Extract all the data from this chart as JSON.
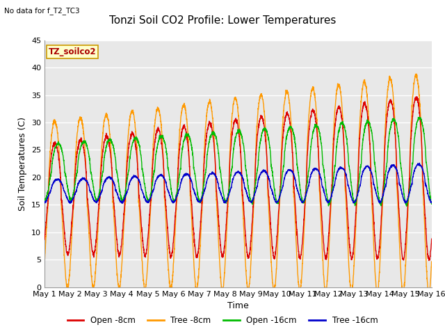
{
  "title": "Tonzi Soil CO2 Profile: Lower Temperatures",
  "subtitle": "No data for f_T2_TC3",
  "xlabel": "Time",
  "ylabel": "Soil Temperatures (C)",
  "legend_label": "TZ_soilco2",
  "series_labels": [
    "Open -8cm",
    "Tree -8cm",
    "Open -16cm",
    "Tree -16cm"
  ],
  "series_colors": [
    "#dd0000",
    "#ff9900",
    "#00bb00",
    "#0000cc"
  ],
  "ylim": [
    0,
    45
  ],
  "xlim": [
    0,
    15
  ],
  "xtick_labels": [
    "May 1",
    "May 2",
    "May 3",
    "May 4",
    "May 5",
    "May 6",
    "May 7",
    "May 8",
    "May 9",
    "May 10",
    "May 11",
    "May 12",
    "May 13",
    "May 14",
    "May 15",
    "May 16"
  ],
  "background_color": "#e8e8e8",
  "plot_bg_color": "#e8e8e8",
  "title_fontsize": 11,
  "label_fontsize": 9,
  "tick_fontsize": 8,
  "n_points": 3000,
  "days": 15
}
